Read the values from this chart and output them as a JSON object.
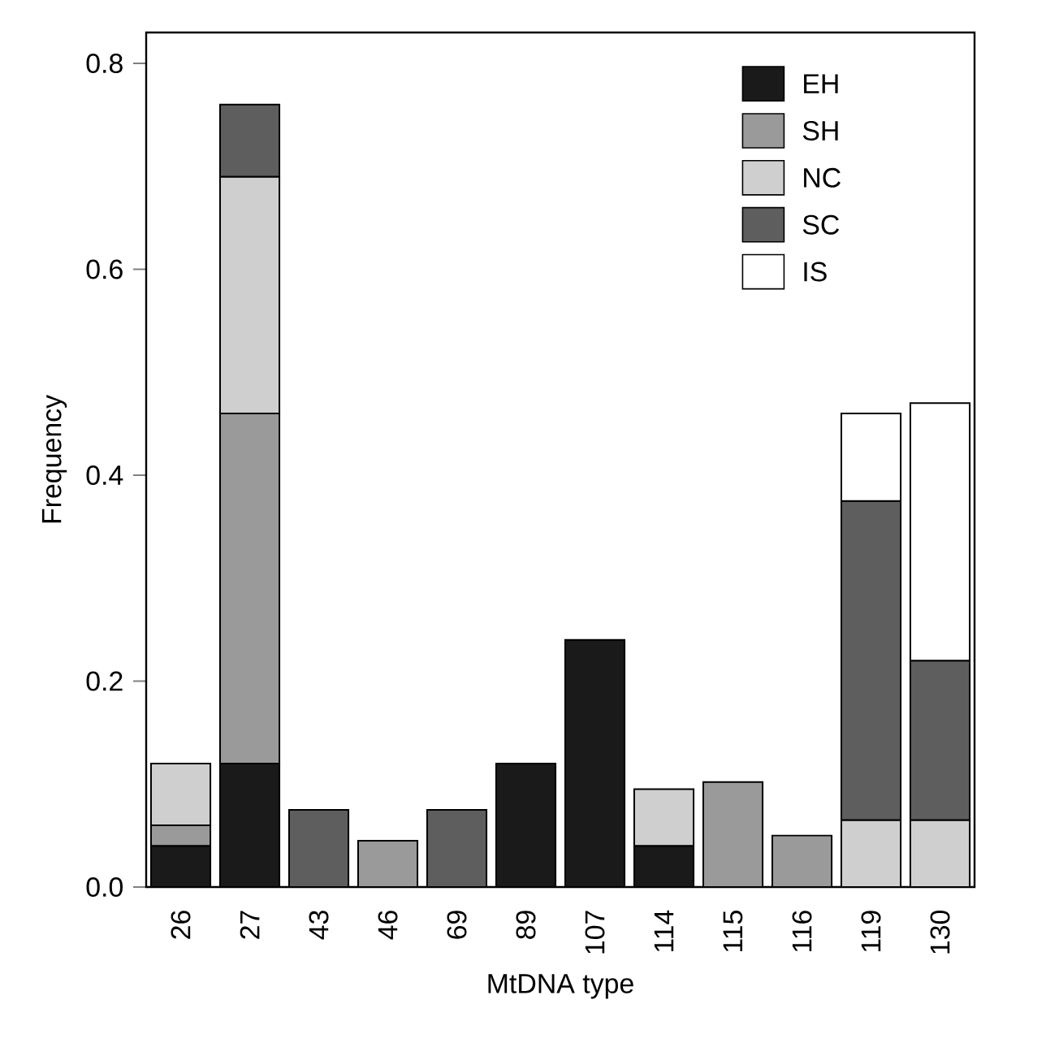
{
  "chart_data": {
    "type": "bar",
    "stacked": true,
    "xlabel": "MtDNA type",
    "ylabel": "Frequency",
    "categories": [
      "26",
      "27",
      "43",
      "46",
      "69",
      "89",
      "107",
      "114",
      "115",
      "116",
      "119",
      "130"
    ],
    "series": [
      {
        "name": "EH",
        "color": "#1a1a1a",
        "values": [
          0.04,
          0.12,
          null,
          null,
          null,
          0.12,
          0.24,
          0.04,
          null,
          null,
          null,
          null
        ]
      },
      {
        "name": "SH",
        "color": "#9a9a9a",
        "values": [
          0.02,
          0.34,
          null,
          0.045,
          null,
          null,
          null,
          null,
          0.102,
          0.05,
          null,
          null
        ]
      },
      {
        "name": "NC",
        "color": "#cfcfcf",
        "values": [
          0.06,
          0.23,
          null,
          null,
          null,
          null,
          null,
          0.055,
          null,
          null,
          0.065,
          0.065
        ]
      },
      {
        "name": "SC",
        "color": "#5e5e5e",
        "values": [
          null,
          0.07,
          0.075,
          null,
          0.075,
          null,
          null,
          null,
          null,
          null,
          0.31,
          0.155
        ]
      },
      {
        "name": "IS",
        "color": "#ffffff",
        "values": [
          null,
          null,
          null,
          null,
          null,
          null,
          null,
          null,
          null,
          null,
          0.085,
          0.25
        ]
      }
    ],
    "ylim": [
      0,
      0.83
    ],
    "yticks": [
      {
        "value": 0,
        "label": "0.0"
      },
      0.2,
      0.4,
      0.6,
      0.8
    ],
    "legend": "top right"
  }
}
